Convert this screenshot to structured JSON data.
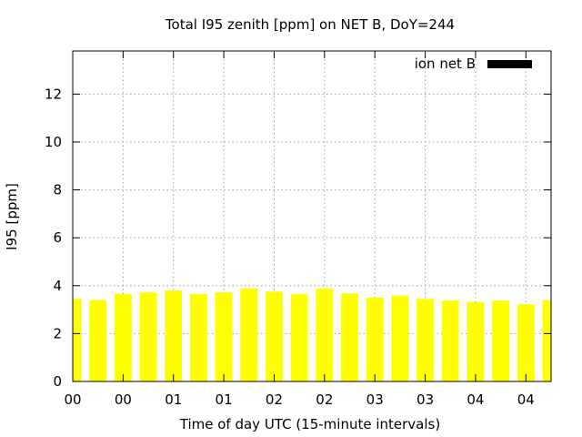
{
  "chart_data": {
    "type": "bar",
    "title": "Total I95 zenith [ppm] on NET B, DoY=244",
    "xlabel": "Time of day UTC (15-minute intervals)",
    "ylabel": "I95 [ppm]",
    "ylim": [
      0,
      13.8
    ],
    "yticks": [
      0,
      2,
      4,
      6,
      8,
      10,
      12
    ],
    "xticks": [
      "00",
      "00",
      "01",
      "01",
      "02",
      "02",
      "03",
      "03",
      "04",
      "04"
    ],
    "x_range_intervals": [
      0,
      19
    ],
    "grid": true,
    "legend_position": "top-right",
    "series": [
      {
        "name": "ion net B",
        "legend_color": "#000000",
        "bar_color": "#ffff00",
        "x": [
          0,
          1,
          2,
          3,
          4,
          5,
          6,
          7,
          8,
          9,
          10,
          11,
          12,
          13,
          14,
          15,
          16,
          17,
          18,
          19
        ],
        "values": [
          3.45,
          3.4,
          3.65,
          3.72,
          3.8,
          3.65,
          3.72,
          3.88,
          3.75,
          3.65,
          3.88,
          3.68,
          3.5,
          3.58,
          3.45,
          3.38,
          3.32,
          3.38,
          3.22,
          3.4
        ]
      }
    ]
  }
}
